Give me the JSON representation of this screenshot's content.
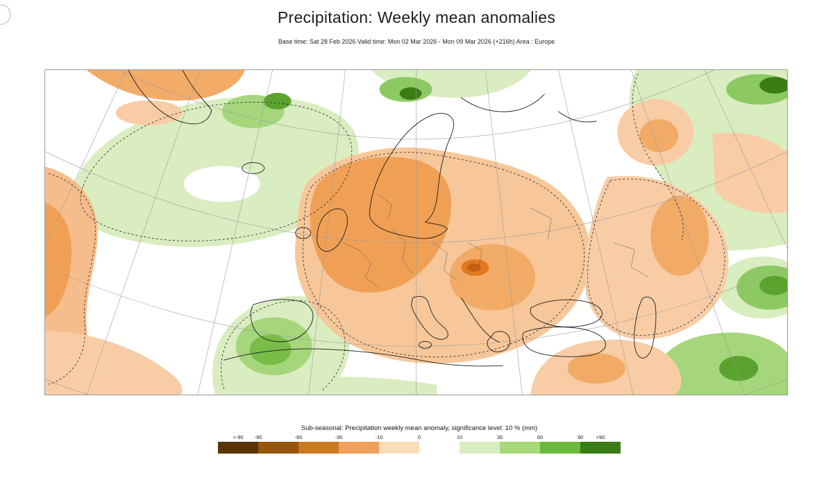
{
  "header": {
    "title": "Precipitation: Weekly mean anomalies",
    "subtitle": "Base time: Sat 28 Feb 2026 Valid time: Mon 02 Mar 2026 - Mon 09 Mar 2026 (+216h) Area : Europe"
  },
  "legend": {
    "title": "Sub-seasonal: Precipitation weekly mean anomaly, significance level: 10 % (mm)",
    "tick_labels": [
      "<-90",
      "-90",
      "-60",
      "-30",
      "-10",
      "0",
      "10",
      "30",
      "60",
      "90",
      ">90"
    ],
    "colors": [
      "#5a3408",
      "#96560e",
      "#cc7a1e",
      "#f0a05a",
      "#f9ddba",
      "#ffffff",
      "#d8edbe",
      "#a8d878",
      "#6cb83a",
      "#3c7c14"
    ]
  },
  "map": {
    "region": "Europe",
    "dry_anomaly_color": "#f0a055",
    "wet_anomaly_color": "#a5d67c",
    "border_color": "#9a9a9a"
  }
}
